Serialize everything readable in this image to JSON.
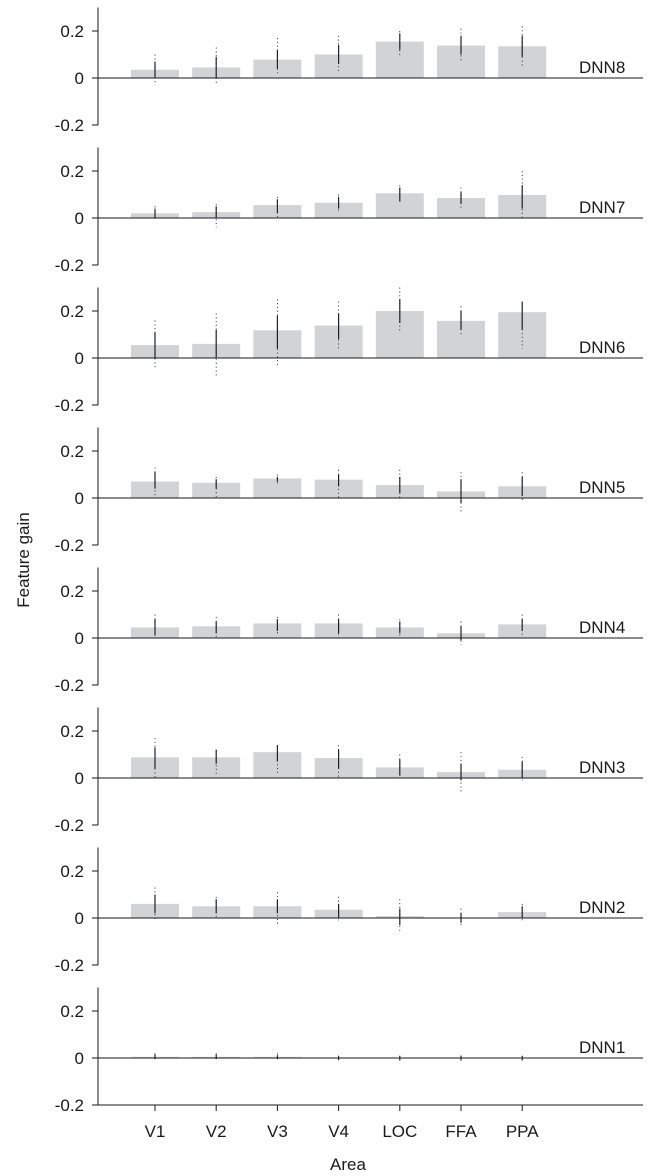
{
  "chart_data": {
    "type": "bar",
    "xlabel": "Area",
    "ylabel": "Feature gain",
    "categories": [
      "V1",
      "V2",
      "V3",
      "V4",
      "LOC",
      "FFA",
      "PPA"
    ],
    "ylim": [
      -0.2,
      0.3
    ],
    "yticks": [
      0.2,
      0,
      -0.2
    ],
    "ytick_labels": [
      "0.2",
      "0",
      "-0.2"
    ],
    "grid": false,
    "colors": {
      "bar": "#d2d3d5",
      "error": "#222222",
      "axis": "#1a1a1a"
    },
    "series": [
      {
        "name": "DNN8",
        "values": [
          0.035,
          0.045,
          0.078,
          0.1,
          0.155,
          0.138,
          0.135
        ],
        "ci": [
          [
            0.0,
            0.07
          ],
          [
            0.0,
            0.09
          ],
          [
            0.04,
            0.12
          ],
          [
            0.06,
            0.14
          ],
          [
            0.12,
            0.19
          ],
          [
            0.1,
            0.18
          ],
          [
            0.09,
            0.18
          ]
        ],
        "range": [
          [
            -0.03,
            0.1
          ],
          [
            -0.03,
            0.13
          ],
          [
            0.02,
            0.17
          ],
          [
            0.03,
            0.18
          ],
          [
            0.09,
            0.2
          ],
          [
            0.07,
            0.21
          ],
          [
            0.05,
            0.22
          ]
        ]
      },
      {
        "name": "DNN7",
        "values": [
          0.02,
          0.025,
          0.055,
          0.065,
          0.105,
          0.085,
          0.098
        ],
        "ci": [
          [
            0.0,
            0.04
          ],
          [
            0.0,
            0.05
          ],
          [
            0.02,
            0.08
          ],
          [
            0.04,
            0.09
          ],
          [
            0.07,
            0.13
          ],
          [
            0.06,
            0.11
          ],
          [
            0.04,
            0.14
          ]
        ],
        "range": [
          [
            -0.01,
            0.05
          ],
          [
            -0.04,
            0.06
          ],
          [
            0.0,
            0.09
          ],
          [
            0.03,
            0.1
          ],
          [
            0.06,
            0.14
          ],
          [
            0.04,
            0.13
          ],
          [
            -0.01,
            0.2
          ]
        ]
      },
      {
        "name": "DNN6",
        "values": [
          0.055,
          0.06,
          0.118,
          0.138,
          0.2,
          0.158,
          0.195
        ],
        "ci": [
          [
            0.0,
            0.11
          ],
          [
            0.0,
            0.12
          ],
          [
            0.04,
            0.18
          ],
          [
            0.08,
            0.19
          ],
          [
            0.15,
            0.25
          ],
          [
            0.12,
            0.2
          ],
          [
            0.12,
            0.24
          ]
        ],
        "range": [
          [
            -0.05,
            0.16
          ],
          [
            -0.08,
            0.19
          ],
          [
            -0.03,
            0.25
          ],
          [
            0.03,
            0.24
          ],
          [
            0.11,
            0.3
          ],
          [
            0.09,
            0.22
          ],
          [
            0.04,
            0.22
          ]
        ]
      },
      {
        "name": "DNN5",
        "values": [
          0.07,
          0.065,
          0.083,
          0.078,
          0.055,
          0.028,
          0.05
        ],
        "ci": [
          [
            0.04,
            0.11
          ],
          [
            0.04,
            0.08
          ],
          [
            0.07,
            0.09
          ],
          [
            0.05,
            0.1
          ],
          [
            0.02,
            0.09
          ],
          [
            -0.02,
            0.08
          ],
          [
            0.01,
            0.09
          ]
        ],
        "range": [
          [
            0.0,
            0.13
          ],
          [
            0.0,
            0.09
          ],
          [
            0.06,
            0.1
          ],
          [
            0.0,
            0.12
          ],
          [
            -0.01,
            0.12
          ],
          [
            -0.06,
            0.11
          ],
          [
            -0.01,
            0.11
          ]
        ]
      },
      {
        "name": "DNN4",
        "values": [
          0.045,
          0.05,
          0.062,
          0.062,
          0.045,
          0.02,
          0.058
        ],
        "ci": [
          [
            0.01,
            0.08
          ],
          [
            0.02,
            0.07
          ],
          [
            0.03,
            0.08
          ],
          [
            0.02,
            0.08
          ],
          [
            0.02,
            0.07
          ],
          [
            -0.01,
            0.05
          ],
          [
            0.03,
            0.08
          ]
        ],
        "range": [
          [
            -0.01,
            0.1
          ],
          [
            0.0,
            0.09
          ],
          [
            0.01,
            0.09
          ],
          [
            -0.01,
            0.1
          ],
          [
            0.0,
            0.08
          ],
          [
            -0.03,
            0.07
          ],
          [
            0.01,
            0.1
          ]
        ]
      },
      {
        "name": "DNN3",
        "values": [
          0.088,
          0.088,
          0.11,
          0.085,
          0.045,
          0.025,
          0.035
        ],
        "ci": [
          [
            0.04,
            0.13
          ],
          [
            0.06,
            0.12
          ],
          [
            0.07,
            0.14
          ],
          [
            0.04,
            0.12
          ],
          [
            0.01,
            0.08
          ],
          [
            -0.01,
            0.06
          ],
          [
            0.0,
            0.07
          ]
        ],
        "range": [
          [
            0.0,
            0.17
          ],
          [
            0.01,
            0.12
          ],
          [
            0.02,
            0.14
          ],
          [
            0.0,
            0.14
          ],
          [
            -0.01,
            0.1
          ],
          [
            -0.06,
            0.11
          ],
          [
            -0.01,
            0.09
          ]
        ]
      },
      {
        "name": "DNN2",
        "values": [
          0.06,
          0.05,
          0.05,
          0.035,
          0.008,
          0.0,
          0.025
        ],
        "ci": [
          [
            0.02,
            0.1
          ],
          [
            0.02,
            0.08
          ],
          [
            0.02,
            0.08
          ],
          [
            0.0,
            0.06
          ],
          [
            -0.03,
            0.04
          ],
          [
            -0.02,
            0.02
          ],
          [
            0.0,
            0.05
          ]
        ],
        "range": [
          [
            -0.01,
            0.13
          ],
          [
            0.0,
            0.09
          ],
          [
            -0.03,
            0.11
          ],
          [
            -0.01,
            0.09
          ],
          [
            -0.06,
            0.08
          ],
          [
            -0.03,
            0.04
          ],
          [
            -0.01,
            0.06
          ]
        ]
      },
      {
        "name": "DNN1",
        "values": [
          0.005,
          0.005,
          0.005,
          0.0,
          0.0,
          0.0,
          0.0
        ],
        "ci": [
          [
            -0.005,
            0.015
          ],
          [
            -0.005,
            0.015
          ],
          [
            -0.005,
            0.012
          ],
          [
            -0.008,
            0.008
          ],
          [
            -0.01,
            0.008
          ],
          [
            -0.01,
            0.01
          ],
          [
            -0.008,
            0.008
          ]
        ],
        "range": [
          [
            -0.01,
            0.02
          ],
          [
            -0.01,
            0.02
          ],
          [
            -0.01,
            0.02
          ],
          [
            -0.01,
            0.01
          ],
          [
            -0.02,
            0.01
          ],
          [
            -0.02,
            0.01
          ],
          [
            -0.02,
            0.01
          ]
        ]
      }
    ]
  }
}
